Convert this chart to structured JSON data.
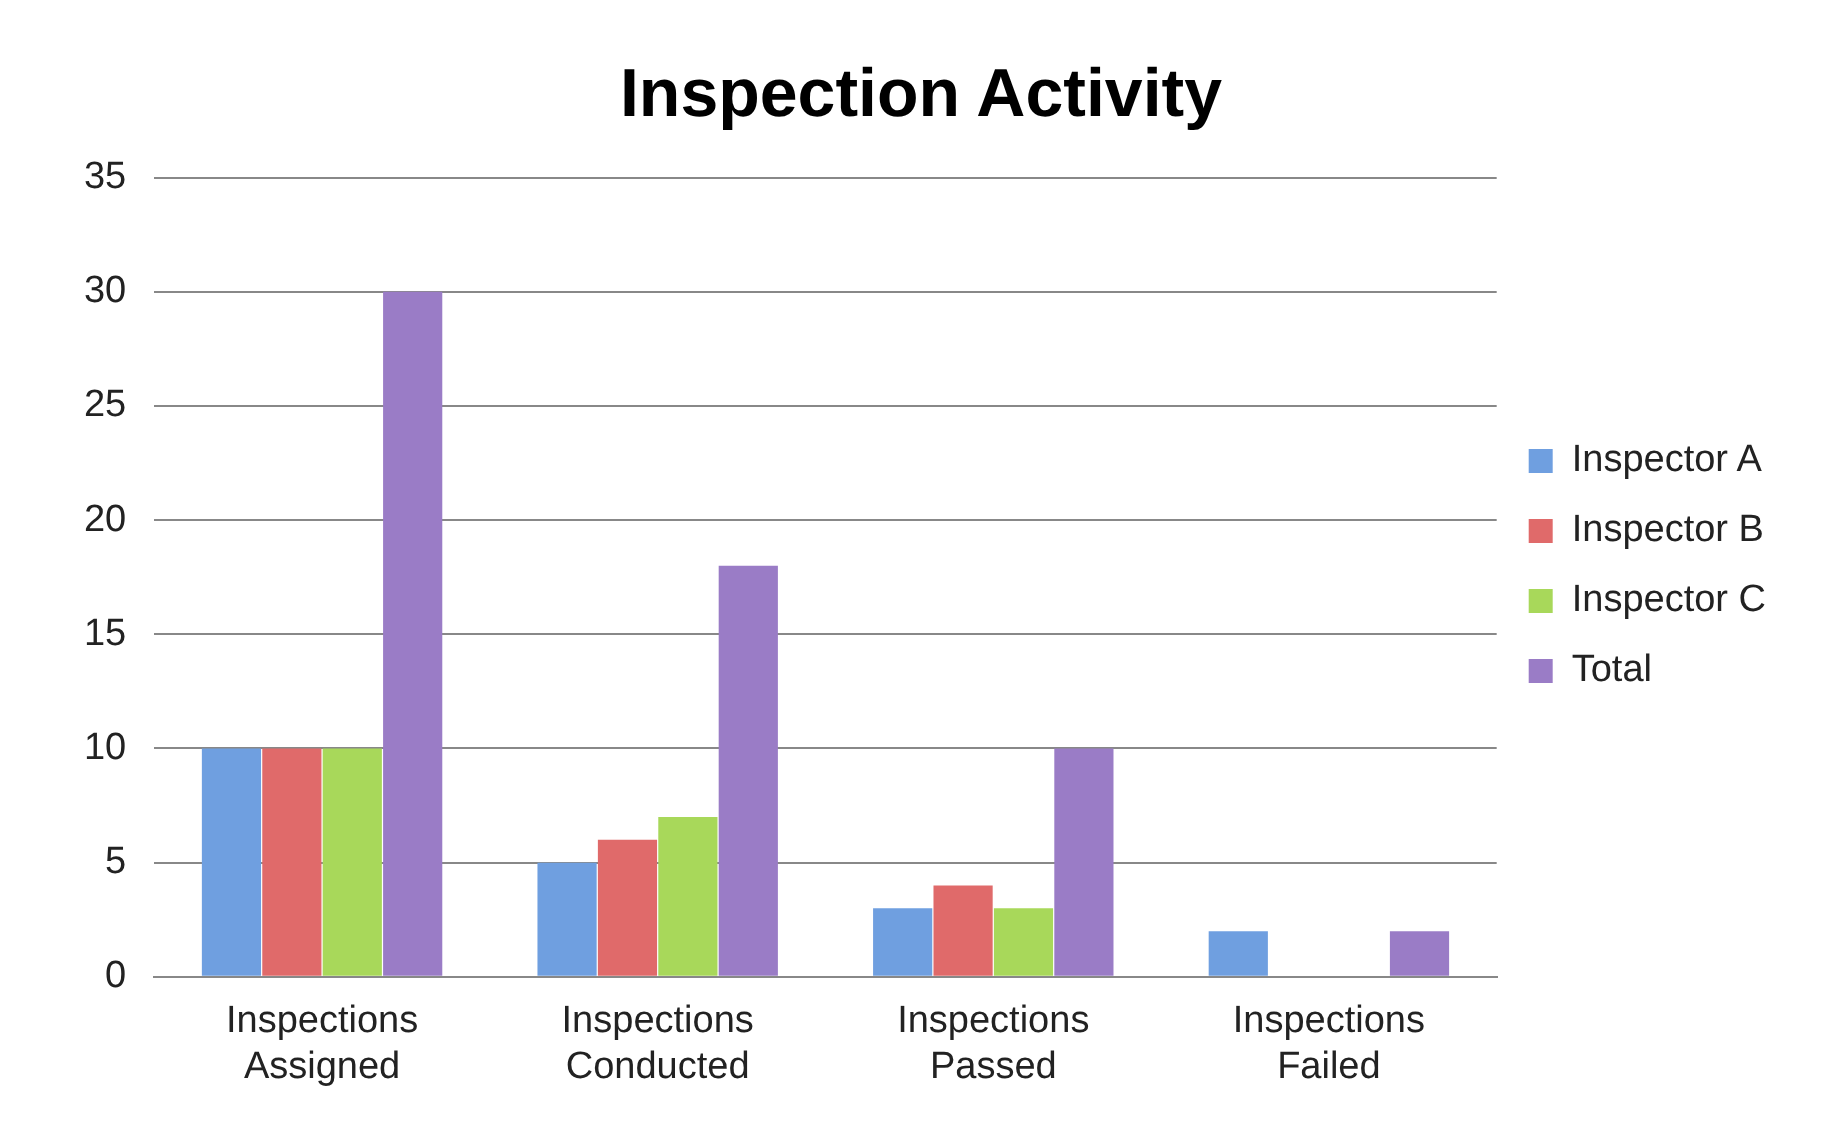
{
  "chart_data": {
    "type": "bar",
    "title": "Inspection Activity",
    "categories": [
      "Inspections Assigned",
      "Inspections Conducted",
      "Inspections Passed",
      "Inspections Failed"
    ],
    "series": [
      {
        "name": "Inspector A",
        "color": "#6f9fe0",
        "values": [
          10,
          5,
          3,
          2
        ]
      },
      {
        "name": "Inspector B",
        "color": "#e06a6a",
        "values": [
          10,
          6,
          4,
          0
        ]
      },
      {
        "name": "Inspector C",
        "color": "#a8d85a",
        "values": [
          10,
          7,
          3,
          0
        ]
      },
      {
        "name": "Total",
        "color": "#9a7cc6",
        "values": [
          30,
          18,
          10,
          2
        ]
      }
    ],
    "ylim": [
      0,
      35
    ],
    "yticks": [
      0,
      5,
      10,
      15,
      20,
      25,
      30,
      35
    ],
    "grid": "y",
    "legend": "right"
  }
}
